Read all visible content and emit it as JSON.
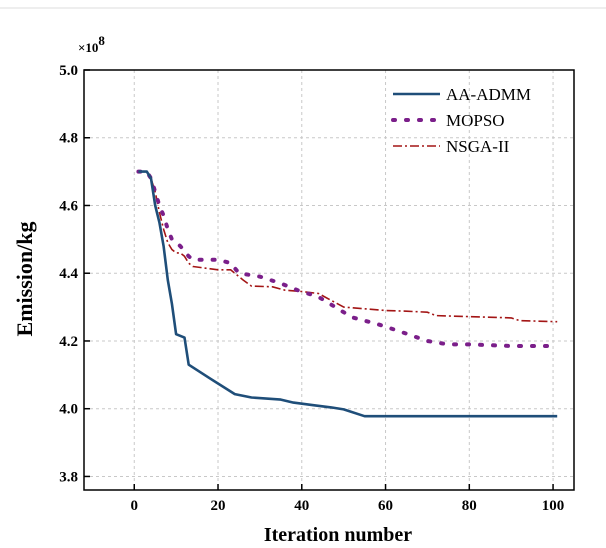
{
  "chart_data": {
    "type": "line",
    "title": "",
    "xlabel": "Iteration number",
    "ylabel": "Emission/kg",
    "y_multiplier": "8",
    "y_multiplier_prefix": "×10",
    "xlim": [
      -12,
      105
    ],
    "ylim": [
      3.76,
      5.0
    ],
    "xticks": [
      0,
      20,
      40,
      60,
      80,
      100
    ],
    "yticks": [
      3.8,
      4.0,
      4.2,
      4.4,
      4.6,
      4.8,
      5.0
    ],
    "xtick_labels": [
      "0",
      "20",
      "40",
      "60",
      "80",
      "100"
    ],
    "ytick_labels": [
      "3.8",
      "4.0",
      "4.2",
      "4.4",
      "4.6",
      "4.8",
      "5.0"
    ],
    "grid": true,
    "legend_position": "top-right",
    "series": [
      {
        "name": "AA-ADMM",
        "color": "#1f4e79",
        "style": "solid",
        "x": [
          1,
          3,
          4,
          5,
          6,
          7,
          8,
          9,
          10,
          12,
          13,
          18,
          24,
          28,
          35,
          38,
          43,
          47,
          50,
          55,
          101
        ],
        "y": [
          4.7,
          4.7,
          4.68,
          4.6,
          4.55,
          4.48,
          4.38,
          4.31,
          4.22,
          4.21,
          4.13,
          4.09,
          4.043,
          4.033,
          4.027,
          4.018,
          4.01,
          4.004,
          3.998,
          3.978,
          3.978
        ]
      },
      {
        "name": "MOPSO",
        "color": "#7b1f8a",
        "style": "dotted",
        "x": [
          1,
          3,
          4,
          5,
          6,
          7,
          8,
          9,
          11,
          13,
          14,
          16,
          20,
          23,
          25,
          30,
          35,
          39,
          44,
          48,
          52,
          58,
          63,
          70,
          75,
          80,
          90,
          101
        ],
        "y": [
          4.7,
          4.7,
          4.68,
          4.64,
          4.6,
          4.57,
          4.53,
          4.5,
          4.48,
          4.45,
          4.44,
          4.44,
          4.44,
          4.43,
          4.4,
          4.39,
          4.37,
          4.35,
          4.33,
          4.3,
          4.27,
          4.25,
          4.23,
          4.2,
          4.19,
          4.19,
          4.185,
          4.185
        ]
      },
      {
        "name": "NSGA-II",
        "color": "#a31515",
        "style": "dashdot",
        "x": [
          1,
          3,
          4,
          5,
          6,
          7,
          8,
          9,
          10,
          11,
          12,
          13,
          14,
          20,
          23,
          24,
          26,
          28,
          33,
          36,
          40,
          44,
          47,
          50,
          55,
          60,
          65,
          70,
          72,
          80,
          90,
          92,
          101
        ],
        "y": [
          4.7,
          4.7,
          4.68,
          4.64,
          4.58,
          4.53,
          4.49,
          4.47,
          4.46,
          4.46,
          4.45,
          4.43,
          4.42,
          4.41,
          4.41,
          4.4,
          4.38,
          4.362,
          4.36,
          4.35,
          4.346,
          4.34,
          4.32,
          4.3,
          4.295,
          4.29,
          4.288,
          4.285,
          4.275,
          4.272,
          4.268,
          4.26,
          4.257
        ]
      }
    ]
  }
}
